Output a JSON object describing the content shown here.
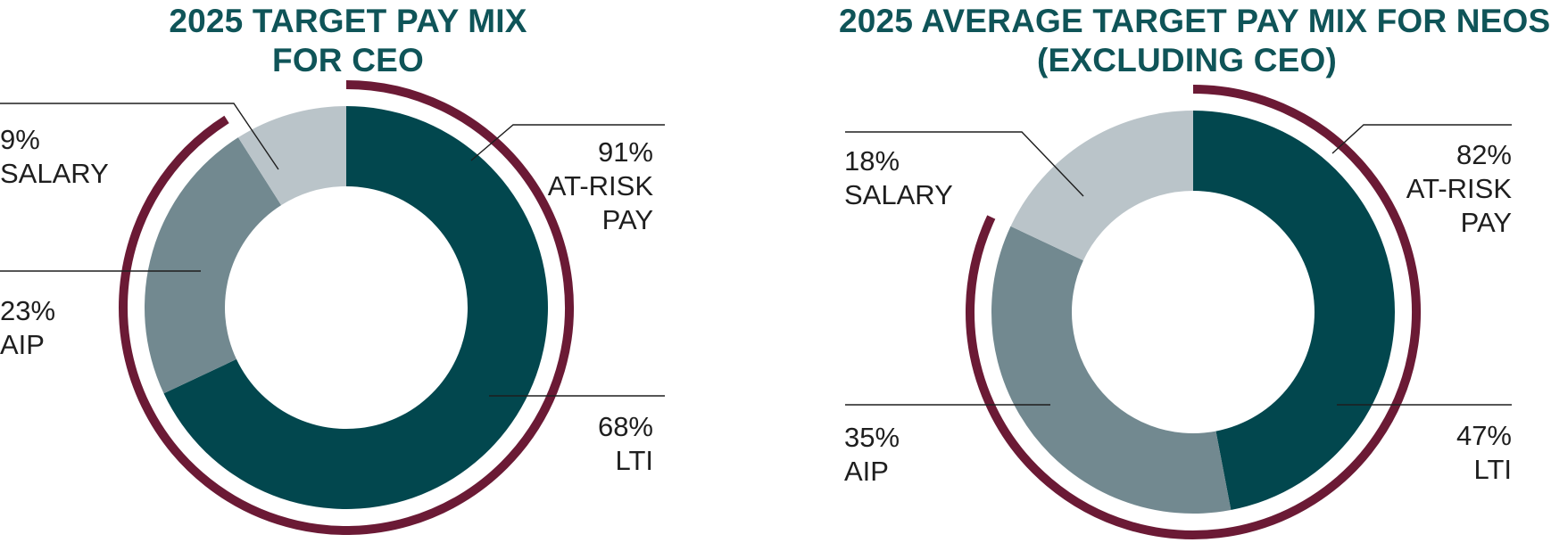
{
  "colors": {
    "title": "#0f5458",
    "lti": "#02474e",
    "aip": "#728990",
    "salary": "#bac4c9",
    "at_risk_arc": "#6b1a35",
    "leader": "#1e1e1e"
  },
  "chart_data": [
    {
      "type": "pie",
      "variant": "donut",
      "title_lines": [
        "2025 TARGET PAY MIX",
        "FOR CEO"
      ],
      "slices": [
        {
          "key": "lti",
          "label": "LTI",
          "percent_label": "68%",
          "value": 68
        },
        {
          "key": "aip",
          "label": "AIP",
          "percent_label": "23%",
          "value": 23
        },
        {
          "key": "salary",
          "label": "SALARY",
          "percent_label": "9%",
          "value": 9
        }
      ],
      "at_risk": {
        "percent_label": "91%",
        "label_lines": [
          "AT-RISK",
          "PAY"
        ],
        "value": 91
      }
    },
    {
      "type": "pie",
      "variant": "donut",
      "title_lines": [
        "2025 AVERAGE TARGET PAY MIX FOR NEOS",
        "(EXCLUDING CEO)"
      ],
      "slices": [
        {
          "key": "lti",
          "label": "LTI",
          "percent_label": "47%",
          "value": 47
        },
        {
          "key": "aip",
          "label": "AIP",
          "percent_label": "35%",
          "value": 35
        },
        {
          "key": "salary",
          "label": "SALARY",
          "percent_label": "18%",
          "value": 18
        }
      ],
      "at_risk": {
        "percent_label": "82%",
        "label_lines": [
          "AT-RISK",
          "PAY"
        ],
        "value": 82
      }
    }
  ]
}
